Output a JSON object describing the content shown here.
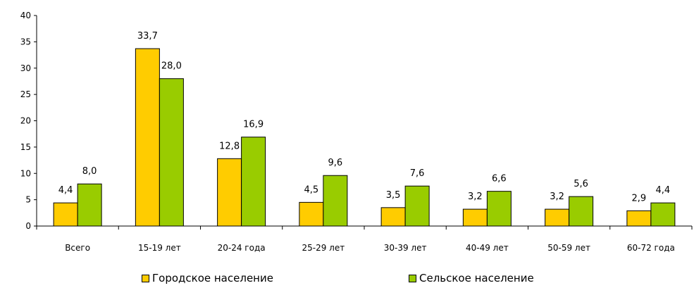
{
  "chart_data": {
    "type": "bar",
    "title": "",
    "xlabel": "",
    "ylabel": "",
    "ylim": [
      0,
      40
    ],
    "yticks": [
      0,
      5,
      10,
      15,
      20,
      25,
      30,
      35,
      40
    ],
    "grid": false,
    "legend_position": "bottom",
    "categories": [
      "Всего",
      "15-19 лет",
      "20-24 года",
      "25-29 лет",
      "30-39 лет",
      "40-49 лет",
      "50-59 лет",
      "60-72 года"
    ],
    "series": [
      {
        "name": "Городское население",
        "color": "#FFCC00",
        "values": [
          4.4,
          33.7,
          12.8,
          4.5,
          3.5,
          3.2,
          3.2,
          2.9
        ],
        "labels": [
          "4,4",
          "33,7",
          "12,8",
          "4,5",
          "3,5",
          "3,2",
          "3,2",
          "2,9"
        ]
      },
      {
        "name": "Сельское население",
        "color": "#99CC00",
        "values": [
          8.0,
          28.0,
          16.9,
          9.6,
          7.6,
          6.6,
          5.6,
          4.4
        ],
        "labels": [
          "8,0",
          "28,0",
          "16,9",
          "9,6",
          "7,6",
          "6,6",
          "5,6",
          "4,4"
        ]
      }
    ]
  }
}
